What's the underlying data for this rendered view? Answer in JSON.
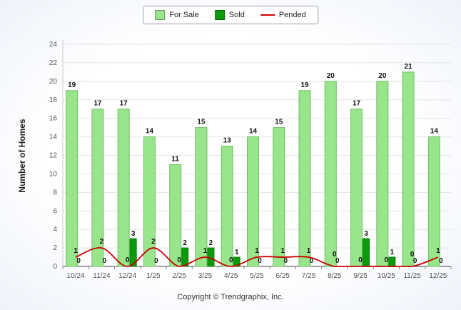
{
  "legend": {
    "items": [
      {
        "label": "For Sale",
        "color": "#98e58b",
        "type": "square"
      },
      {
        "label": "Sold",
        "color": "#0a9a0a",
        "type": "square"
      },
      {
        "label": "Pended",
        "color": "#cc0000",
        "type": "line"
      }
    ]
  },
  "ylabel": "Number of Homes",
  "footer": "Copyright © Trendgraphix, Inc.",
  "chart_data": {
    "type": "bar",
    "categories": [
      "10/24",
      "11/24",
      "12/24",
      "1/25",
      "2/25",
      "3/25",
      "4/25",
      "5/25",
      "6/25",
      "7/25",
      "8/25",
      "9/25",
      "10/25",
      "11/25",
      "12/25"
    ],
    "series": [
      {
        "name": "For Sale",
        "type": "bar",
        "color": "#98e58b",
        "edge": "#6fbf63",
        "values": [
          19,
          17,
          17,
          14,
          11,
          15,
          13,
          14,
          15,
          19,
          20,
          17,
          20,
          21,
          14
        ]
      },
      {
        "name": "Sold",
        "type": "bar",
        "color": "#0a9a0a",
        "edge": "#067d06",
        "values": [
          0,
          0,
          3,
          0,
          2,
          2,
          1,
          0,
          0,
          0,
          0,
          3,
          1,
          0,
          0
        ]
      },
      {
        "name": "Pended",
        "type": "line",
        "color": "#cc0000",
        "values": [
          1,
          2,
          0,
          2,
          0,
          1,
          0,
          1,
          1,
          1,
          0,
          0,
          0,
          0,
          1
        ]
      }
    ],
    "title": "",
    "xlabel": "",
    "ylabel": "Number of Homes",
    "ylim": [
      0,
      24
    ],
    "ytick_step": 2,
    "grid": true,
    "legend_position": "top"
  }
}
